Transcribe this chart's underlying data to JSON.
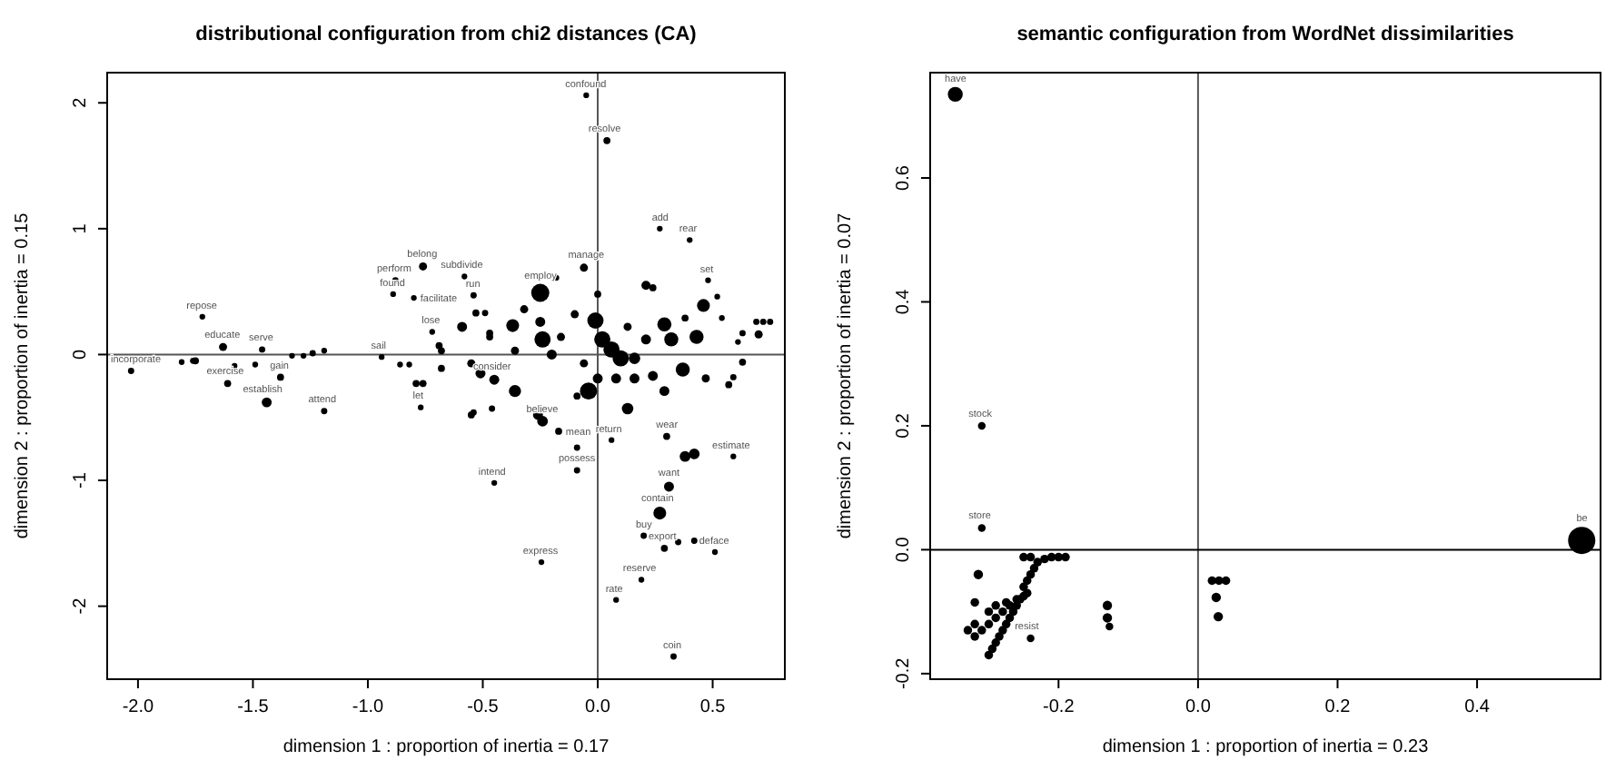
{
  "chart_data": [
    {
      "type": "bubble",
      "title": "distributional configuration from chi2 distances (CA)",
      "xlabel": "dimension 1 : proportion of inertia =  0.17",
      "ylabel": "dimension 2 : proportion of inertia =  0.15",
      "xlim": [
        -2.134,
        0.814
      ],
      "ylim": [
        -2.58,
        2.24
      ],
      "xticks": [
        {
          "value": -2,
          "label": "-2.0"
        },
        {
          "value": -1.5,
          "label": "-1.5"
        },
        {
          "value": -1,
          "label": "-1.0"
        },
        {
          "value": -0.5,
          "label": "-0.5"
        },
        {
          "value": 0,
          "label": "0.0"
        },
        {
          "value": 0.5,
          "label": "0.5"
        }
      ],
      "yticks": [
        -2,
        -1,
        0,
        1,
        2
      ],
      "grid": false,
      "ref_lines": [
        {
          "axis": "x",
          "value": 0,
          "color": "#555555"
        },
        {
          "axis": "y",
          "value": 0,
          "color": "#555555"
        }
      ],
      "series": [
        {
          "color": "#000000",
          "x": [
            -2.03,
            -1.72,
            -1.63,
            -1.46,
            -1.61,
            -1.44,
            -1.38,
            -1.19,
            -1.81,
            -1.76,
            -1.75,
            -1.58,
            -1.49,
            -1.33,
            -1.28,
            -1.24,
            -1.19,
            -0.94,
            -0.86,
            -0.82,
            -0.79,
            -0.76,
            -0.77,
            -0.68,
            -0.68,
            -0.72,
            -0.76,
            -0.88,
            -0.89,
            -0.8,
            -0.58,
            -0.54,
            -0.45,
            -0.245,
            -0.45,
            -0.36,
            -0.05,
            0.04,
            0.27,
            0.4,
            -0.06,
            -0.18,
            -0.25,
            0.0,
            0.21,
            0.24,
            0.48,
            0.52,
            0.54,
            0.46,
            0.38,
            0.29,
            0.32,
            0.43,
            0.63,
            0.69,
            0.72,
            0.75,
            0.61,
            -0.01,
            0.02,
            0.06,
            0.1,
            0.16,
            0.21,
            0.13,
            -0.1,
            -0.16,
            -0.24,
            -0.25,
            -0.37,
            -0.32,
            -0.47,
            -0.53,
            -0.36,
            -0.2,
            -0.06,
            -0.51,
            -0.04,
            0.0,
            0.08,
            0.16,
            0.24,
            0.37,
            0.29,
            0.13,
            0.47,
            0.57,
            -0.09,
            -0.24,
            -0.26,
            -0.46,
            -0.54,
            -0.17,
            -0.09,
            -0.09,
            0.06,
            0.3,
            0.38,
            0.42,
            0.59,
            0.31,
            0.27,
            0.2,
            0.29,
            0.35,
            0.42,
            0.51,
            0.19,
            0.08,
            0.33,
            -0.49,
            -0.69,
            -0.59,
            -0.47,
            -0.55,
            -0.55,
            0.7,
            0.63,
            0.59
          ],
          "values": [
            -0.13,
            0.3,
            0.06,
            0.04,
            -0.23,
            -0.38,
            -0.18,
            -0.45,
            -0.06,
            -0.05,
            -0.05,
            -0.09,
            -0.08,
            -0.01,
            -0.01,
            0.01,
            0.03,
            -0.02,
            -0.08,
            -0.08,
            -0.23,
            -0.23,
            -0.42,
            -0.11,
            0.03,
            0.18,
            0.7,
            0.59,
            0.48,
            0.45,
            0.62,
            0.47,
            -1.02,
            -1.65,
            -0.2,
            -0.29,
            2.06,
            1.7,
            1.0,
            0.91,
            0.69,
            0.61,
            0.49,
            0.48,
            0.55,
            0.53,
            0.59,
            0.46,
            0.29,
            0.39,
            0.29,
            0.24,
            0.12,
            0.14,
            0.17,
            0.26,
            0.26,
            0.26,
            0.1,
            0.27,
            0.12,
            0.04,
            -0.03,
            -0.03,
            0.12,
            0.22,
            0.32,
            0.14,
            0.12,
            0.26,
            0.23,
            0.36,
            0.14,
            0.33,
            0.03,
            0.0,
            -0.07,
            -0.15,
            -0.29,
            -0.19,
            -0.19,
            -0.19,
            -0.17,
            -0.12,
            -0.29,
            -0.43,
            -0.19,
            -0.24,
            -0.33,
            -0.53,
            -0.48,
            -0.43,
            -0.46,
            -0.61,
            -0.74,
            -0.92,
            -0.68,
            -0.65,
            -0.81,
            -0.79,
            -0.81,
            -1.05,
            -1.26,
            -1.44,
            -1.54,
            -1.49,
            -1.48,
            -1.57,
            -1.79,
            -1.95,
            -2.4,
            0.33,
            0.07,
            0.22,
            0.17,
            -0.07,
            -0.48,
            0.16,
            -0.06,
            -0.18
          ],
          "sizes": [
            0.12,
            0.1,
            0.2,
            0.12,
            0.15,
            0.3,
            0.15,
            0.12,
            0.1,
            0.12,
            0.15,
            0.1,
            0.1,
            0.1,
            0.1,
            0.12,
            0.1,
            0.1,
            0.1,
            0.1,
            0.15,
            0.15,
            0.1,
            0.15,
            0.15,
            0.1,
            0.2,
            0.12,
            0.1,
            0.1,
            0.1,
            0.12,
            0.1,
            0.1,
            0.3,
            0.45,
            0.1,
            0.15,
            0.1,
            0.1,
            0.2,
            0.1,
            1,
            0.15,
            0.25,
            0.15,
            0.1,
            0.1,
            0.1,
            0.5,
            0.15,
            0.6,
            0.6,
            0.6,
            0.12,
            0.12,
            0.12,
            0.12,
            0.1,
            0.8,
            0.8,
            0.8,
            0.8,
            0.4,
            0.3,
            0.2,
            0.2,
            0.2,
            0.8,
            0.3,
            0.5,
            0.2,
            0.15,
            0.15,
            0.2,
            0.3,
            0.2,
            0.3,
            0.9,
            0.3,
            0.3,
            0.3,
            0.3,
            0.6,
            0.3,
            0.4,
            0.2,
            0.15,
            0.15,
            0.35,
            0.3,
            0.12,
            0.12,
            0.15,
            0.12,
            0.12,
            0.1,
            0.15,
            0.35,
            0.35,
            0.1,
            0.3,
            0.5,
            0.12,
            0.15,
            0.12,
            0.12,
            0.1,
            0.1,
            0.1,
            0.12,
            0.12,
            0.15,
            0.3,
            0.15,
            0.2,
            0.15,
            0.2,
            0.15,
            0.12
          ]
        }
      ],
      "annotations": [
        {
          "text": "incorporate",
          "x": -2.03,
          "y": -0.13
        },
        {
          "text": "repose",
          "x": -1.72,
          "y": 0.3
        },
        {
          "text": "educate",
          "x": -1.63,
          "y": 0.06
        },
        {
          "text": "serve",
          "x": -1.46,
          "y": 0.04
        },
        {
          "text": "exercise",
          "x": -1.61,
          "y": -0.23
        },
        {
          "text": "establish",
          "x": -1.44,
          "y": -0.38
        },
        {
          "text": "gain",
          "x": -1.38,
          "y": -0.18
        },
        {
          "text": "attend",
          "x": -1.19,
          "y": -0.45
        },
        {
          "text": "sail",
          "x": -0.94,
          "y": -0.02
        },
        {
          "text": "let",
          "x": -0.77,
          "y": -0.42
        },
        {
          "text": "lose",
          "x": -0.72,
          "y": 0.18
        },
        {
          "text": "belong",
          "x": -0.76,
          "y": 0.7
        },
        {
          "text": "perform",
          "x": -0.88,
          "y": 0.59
        },
        {
          "text": "found",
          "x": -0.89,
          "y": 0.48
        },
        {
          "text": "facilitate",
          "x": -0.8,
          "y": 0.45
        },
        {
          "text": "subdivide",
          "x": -0.58,
          "y": 0.62
        },
        {
          "text": "run",
          "x": -0.54,
          "y": 0.47
        },
        {
          "text": "intend",
          "x": -0.45,
          "y": -1.02
        },
        {
          "text": "express",
          "x": -0.245,
          "y": -1.65
        },
        {
          "text": "consider",
          "x": -0.45,
          "y": -0.2
        },
        {
          "text": "confound",
          "x": -0.05,
          "y": 2.06
        },
        {
          "text": "resolve",
          "x": 0.04,
          "y": 1.7
        },
        {
          "text": "add",
          "x": 0.27,
          "y": 1.0
        },
        {
          "text": "rear",
          "x": 0.4,
          "y": 0.91
        },
        {
          "text": "manage",
          "x": -0.06,
          "y": 0.69
        },
        {
          "text": "employ",
          "x": -0.25,
          "y": 0.49
        },
        {
          "text": "set",
          "x": 0.48,
          "y": 0.59
        },
        {
          "text": "believe",
          "x": -0.23,
          "y": -0.53
        },
        {
          "text": "mean",
          "x": -0.17,
          "y": -0.61
        },
        {
          "text": "possess",
          "x": -0.09,
          "y": -0.92
        },
        {
          "text": "return",
          "x": 0.06,
          "y": -0.68
        },
        {
          "text": "wear",
          "x": 0.3,
          "y": -0.65
        },
        {
          "text": "estimate",
          "x": 0.59,
          "y": -0.81
        },
        {
          "text": "want",
          "x": 0.31,
          "y": -1.05
        },
        {
          "text": "contain",
          "x": 0.27,
          "y": -1.26
        },
        {
          "text": "buy",
          "x": 0.2,
          "y": -1.44
        },
        {
          "text": "export",
          "x": 0.29,
          "y": -1.54
        },
        {
          "text": "deface",
          "x": 0.51,
          "y": -1.57
        },
        {
          "text": "reserve",
          "x": 0.19,
          "y": -1.79
        },
        {
          "text": "rate",
          "x": 0.08,
          "y": -1.95
        },
        {
          "text": "coin",
          "x": 0.33,
          "y": -2.4
        }
      ]
    },
    {
      "type": "bubble",
      "title": "semantic configuration from WordNet dissimilarities",
      "xlabel": "dimension 1 : proportion of inertia =  0.23",
      "ylabel": "dimension 2 : proportion of inertia =  0.07",
      "xlim": [
        -0.384,
        0.577
      ],
      "ylim": [
        -0.209,
        0.77
      ],
      "xticks": [
        {
          "value": -0.2,
          "label": "-0.2"
        },
        {
          "value": 0,
          "label": "0.0"
        },
        {
          "value": 0.2,
          "label": "0.2"
        },
        {
          "value": 0.4,
          "label": "0.4"
        }
      ],
      "yticks": [
        {
          "value": -0.2,
          "label": "-0.2"
        },
        {
          "value": 0,
          "label": "0.0"
        },
        {
          "value": 0.2,
          "label": "0.2"
        },
        {
          "value": 0.4,
          "label": "0.4"
        },
        {
          "value": 0.6,
          "label": "0.6"
        }
      ],
      "grid": false,
      "ref_lines": [
        {
          "axis": "x",
          "value": 0,
          "color": "#555555"
        },
        {
          "axis": "y",
          "value": 0,
          "color": "#000000"
        }
      ],
      "series": [
        {
          "color": "#000000",
          "x": [
            -0.348,
            -0.31,
            -0.31,
            0.55,
            -0.315,
            -0.32,
            -0.24,
            -0.13,
            -0.13,
            -0.127,
            0.02,
            0.03,
            0.04,
            0.026,
            0.029,
            -0.3,
            -0.295,
            -0.29,
            -0.285,
            -0.28,
            -0.275,
            -0.27,
            -0.265,
            -0.26,
            -0.255,
            -0.25,
            -0.245,
            -0.32,
            -0.31,
            -0.3,
            -0.29,
            -0.28,
            -0.27,
            -0.26,
            -0.33,
            -0.32,
            -0.3,
            -0.29,
            -0.275,
            -0.25,
            -0.245,
            -0.24,
            -0.235,
            -0.23,
            -0.22,
            -0.21,
            -0.2,
            -0.19,
            -0.25,
            -0.24
          ],
          "values": [
            0.735,
            0.2,
            0.035,
            0.015,
            -0.04,
            -0.085,
            -0.143,
            -0.09,
            -0.11,
            -0.124,
            -0.05,
            -0.05,
            -0.05,
            -0.077,
            -0.108,
            -0.17,
            -0.16,
            -0.15,
            -0.14,
            -0.13,
            -0.12,
            -0.11,
            -0.1,
            -0.09,
            -0.08,
            -0.075,
            -0.07,
            -0.14,
            -0.13,
            -0.12,
            -0.11,
            -0.1,
            -0.09,
            -0.08,
            -0.13,
            -0.12,
            -0.1,
            -0.09,
            -0.085,
            -0.06,
            -0.05,
            -0.04,
            -0.03,
            -0.02,
            -0.015,
            -0.012,
            -0.012,
            -0.012,
            -0.012,
            -0.012
          ],
          "sizes": [
            0.3,
            0.08,
            0.08,
            1,
            0.12,
            0.1,
            0.08,
            0.12,
            0.12,
            0.08,
            0.1,
            0.1,
            0.1,
            0.12,
            0.12,
            0.1,
            0.1,
            0.1,
            0.1,
            0.1,
            0.1,
            0.1,
            0.1,
            0.1,
            0.1,
            0.1,
            0.1,
            0.1,
            0.1,
            0.1,
            0.1,
            0.1,
            0.1,
            0.1,
            0.1,
            0.1,
            0.1,
            0.1,
            0.1,
            0.1,
            0.1,
            0.1,
            0.1,
            0.1,
            0.1,
            0.1,
            0.1,
            0.1,
            0.1,
            0.1
          ]
        }
      ],
      "annotations": [
        {
          "text": "have",
          "x": -0.348,
          "y": 0.735
        },
        {
          "text": "stock",
          "x": -0.31,
          "y": 0.2
        },
        {
          "text": "store",
          "x": -0.31,
          "y": 0.035
        },
        {
          "text": "be",
          "x": 0.55,
          "y": 0.015
        },
        {
          "text": "resist",
          "x": -0.24,
          "y": -0.143
        }
      ]
    }
  ]
}
